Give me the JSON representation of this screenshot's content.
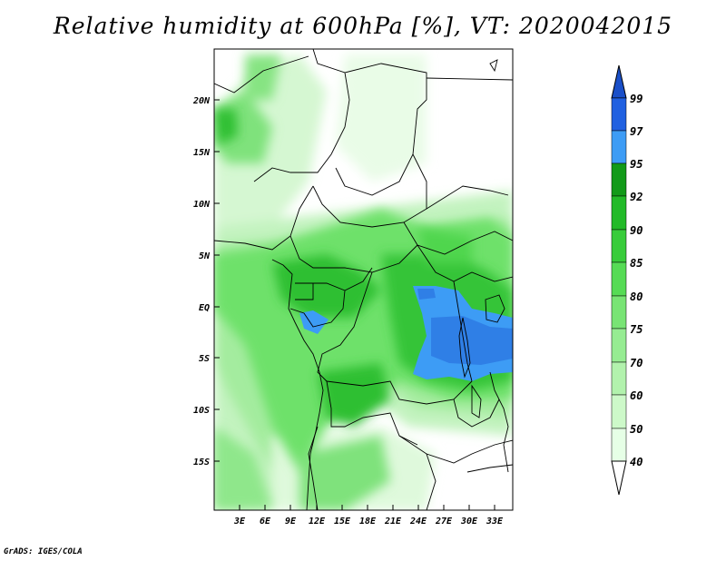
{
  "title": "Relative humidity at 600hPa [%], VT: 2020042015",
  "credit": "GrADS: IGES/COLA",
  "map": {
    "lon_range": [
      0,
      35
    ],
    "lat_range": [
      -19.5,
      24.5
    ],
    "lat_ticks": [
      "20N",
      "15N",
      "10N",
      "5N",
      "EQ",
      "5S",
      "10S",
      "15S"
    ],
    "lon_ticks": [
      "3E",
      "6E",
      "9E",
      "12E",
      "15E",
      "18E",
      "21E",
      "24E",
      "27E",
      "30E",
      "33E"
    ]
  },
  "colorbar": {
    "labels": [
      "40",
      "50",
      "60",
      "70",
      "75",
      "80",
      "85",
      "90",
      "92",
      "95",
      "97",
      "99"
    ],
    "colors": [
      "#ffffff",
      "#e6ffe6",
      "#cdf9c9",
      "#b2f2ad",
      "#96ec92",
      "#78e474",
      "#56db55",
      "#38cc3a",
      "#22ba28",
      "#129a19",
      "#3d9cf5",
      "#2060e0",
      "#1a4fc8"
    ]
  }
}
